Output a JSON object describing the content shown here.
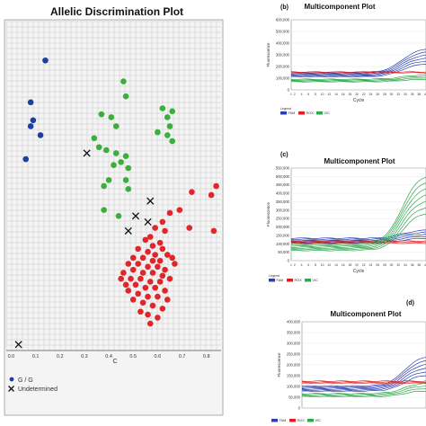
{
  "chart_data": [
    {
      "type": "scatter",
      "title": "Allelic Discrimination Plot",
      "xlabel": "C",
      "ylabel": "",
      "xlim": [
        -0.02,
        0.86
      ],
      "ylim": [
        -0.05,
        1.05
      ],
      "x_ticks": [
        "0.0",
        "0.1",
        "0.2",
        "0.3",
        "0.4",
        "0.5",
        "0.6",
        "0.7",
        "0.8"
      ],
      "grid": true,
      "legend": {
        "placement": "bottom-left",
        "entries": [
          "G / G",
          "Undetermined"
        ]
      },
      "series": [
        {
          "name": "G / G",
          "color": "#1f3fa0",
          "marker": "dot",
          "points": [
            [
              0.14,
              0.92
            ],
            [
              0.08,
              0.78
            ],
            [
              0.09,
              0.72
            ],
            [
              0.12,
              0.67
            ],
            [
              0.08,
              0.7
            ],
            [
              0.06,
              0.59
            ]
          ]
        },
        {
          "color": "#3cae3c",
          "marker": "dot",
          "points": [
            [
              0.46,
              0.85
            ],
            [
              0.47,
              0.8
            ],
            [
              0.41,
              0.73
            ],
            [
              0.43,
              0.7
            ],
            [
              0.37,
              0.74
            ],
            [
              0.34,
              0.66
            ],
            [
              0.36,
              0.63
            ],
            [
              0.39,
              0.62
            ],
            [
              0.43,
              0.61
            ],
            [
              0.47,
              0.6
            ],
            [
              0.45,
              0.58
            ],
            [
              0.48,
              0.56
            ],
            [
              0.42,
              0.57
            ],
            [
              0.4,
              0.52
            ],
            [
              0.47,
              0.52
            ],
            [
              0.48,
              0.49
            ],
            [
              0.38,
              0.5
            ],
            [
              0.62,
              0.76
            ],
            [
              0.64,
              0.73
            ],
            [
              0.66,
              0.75
            ],
            [
              0.65,
              0.7
            ],
            [
              0.64,
              0.67
            ],
            [
              0.6,
              0.68
            ],
            [
              0.66,
              0.65
            ],
            [
              0.38,
              0.42
            ],
            [
              0.44,
              0.4
            ]
          ]
        },
        {
          "color": "#e0262a",
          "marker": "dot",
          "points": [
            [
              0.84,
              0.5
            ],
            [
              0.82,
              0.47
            ],
            [
              0.74,
              0.48
            ],
            [
              0.69,
              0.42
            ],
            [
              0.65,
              0.41
            ],
            [
              0.83,
              0.35
            ],
            [
              0.73,
              0.36
            ],
            [
              0.62,
              0.38
            ],
            [
              0.59,
              0.36
            ],
            [
              0.63,
              0.35
            ],
            [
              0.57,
              0.33
            ],
            [
              0.61,
              0.31
            ],
            [
              0.55,
              0.32
            ],
            [
              0.58,
              0.3
            ],
            [
              0.62,
              0.29
            ],
            [
              0.52,
              0.29
            ],
            [
              0.56,
              0.28
            ],
            [
              0.59,
              0.27
            ],
            [
              0.64,
              0.27
            ],
            [
              0.5,
              0.26
            ],
            [
              0.54,
              0.26
            ],
            [
              0.58,
              0.25
            ],
            [
              0.61,
              0.25
            ],
            [
              0.66,
              0.26
            ],
            [
              0.48,
              0.24
            ],
            [
              0.52,
              0.24
            ],
            [
              0.56,
              0.23
            ],
            [
              0.6,
              0.23
            ],
            [
              0.63,
              0.22
            ],
            [
              0.67,
              0.24
            ],
            [
              0.5,
              0.22
            ],
            [
              0.54,
              0.21
            ],
            [
              0.58,
              0.21
            ],
            [
              0.62,
              0.2
            ],
            [
              0.46,
              0.21
            ],
            [
              0.49,
              0.19
            ],
            [
              0.53,
              0.19
            ],
            [
              0.57,
              0.18
            ],
            [
              0.61,
              0.18
            ],
            [
              0.65,
              0.19
            ],
            [
              0.51,
              0.17
            ],
            [
              0.55,
              0.16
            ],
            [
              0.59,
              0.16
            ],
            [
              0.63,
              0.15
            ],
            [
              0.48,
              0.15
            ],
            [
              0.52,
              0.14
            ],
            [
              0.56,
              0.13
            ],
            [
              0.6,
              0.13
            ],
            [
              0.54,
              0.11
            ],
            [
              0.58,
              0.1
            ],
            [
              0.62,
              0.09
            ],
            [
              0.56,
              0.07
            ],
            [
              0.6,
              0.06
            ],
            [
              0.57,
              0.04
            ],
            [
              0.53,
              0.08
            ],
            [
              0.5,
              0.12
            ],
            [
              0.47,
              0.17
            ],
            [
              0.45,
              0.19
            ],
            [
              0.64,
              0.12
            ]
          ]
        },
        {
          "name": "Undetermined",
          "color": "#111111",
          "marker": "x",
          "points": [
            [
              0.31,
              0.61
            ],
            [
              0.51,
              0.4
            ],
            [
              0.57,
              0.45
            ],
            [
              0.48,
              0.35
            ],
            [
              0.56,
              0.38
            ],
            [
              0.03,
              -0.03
            ]
          ]
        }
      ]
    },
    {
      "type": "line",
      "title": "Multicomponent Plot",
      "panel_label": "(b)",
      "xlabel": "Cycle",
      "ylabel": "Fluorescence",
      "y_ticks": [
        "0",
        "100,000",
        "200,000",
        "300,000",
        "400,000",
        "500,000",
        "600,000"
      ],
      "x_ticks": [
        "1",
        "2",
        "4",
        "6",
        "8",
        "10",
        "12",
        "14",
        "16",
        "18",
        "20",
        "22",
        "24",
        "26",
        "28",
        "30",
        "32",
        "34",
        "36",
        "38",
        "40"
      ],
      "legend": {
        "title": "Legend",
        "entries": [
          "FAM",
          "ROX",
          "VIC"
        ]
      },
      "series": [
        {
          "name": "FAM",
          "color": "#2b3fb0",
          "base": 130000,
          "end": 340000,
          "n": 6
        },
        {
          "name": "ROX",
          "color": "#e02020",
          "base": 150000,
          "end": 150000,
          "n": 2
        },
        {
          "name": "VIC",
          "color": "#2fa84f",
          "base": 80000,
          "end": 120000,
          "n": 4
        }
      ]
    },
    {
      "type": "line",
      "title": "Multicomponent Plot",
      "panel_label": "(c)",
      "xlabel": "Cycle",
      "ylabel": "Fluorescence",
      "y_ticks": [
        "0",
        "50,000",
        "100,000",
        "150,000",
        "200,000",
        "250,000",
        "300,000",
        "350,000",
        "400,000",
        "450,000",
        "500,000",
        "550,000"
      ],
      "x_ticks": [
        "1",
        "2",
        "4",
        "6",
        "8",
        "10",
        "12",
        "14",
        "16",
        "18",
        "20",
        "22",
        "24",
        "26",
        "28",
        "30",
        "32",
        "34",
        "36",
        "38",
        "40"
      ],
      "legend": {
        "title": "Legend",
        "entries": [
          "FAM",
          "ROX",
          "VIC"
        ]
      },
      "series": [
        {
          "name": "FAM",
          "color": "#2b3fb0",
          "base": 120000,
          "end": 170000,
          "n": 5
        },
        {
          "name": "ROX",
          "color": "#e02020",
          "base": 110000,
          "end": 110000,
          "n": 3
        },
        {
          "name": "VIC",
          "color": "#2fa84f",
          "base": 80000,
          "end": 500000,
          "n": 7
        }
      ]
    },
    {
      "type": "line",
      "title": "Multicomponent Plot",
      "panel_label": "(d)",
      "xlabel": "",
      "ylabel": "Fluorescence",
      "y_ticks": [
        "0",
        "50,000",
        "100,000",
        "150,000",
        "200,000",
        "250,000",
        "300,000",
        "350,000",
        "400,000"
      ],
      "x_ticks": [],
      "legend": {
        "title": "",
        "entries": [
          "FAM",
          "ROX",
          "VIC"
        ]
      },
      "series": [
        {
          "name": "FAM",
          "color": "#2b3fb0",
          "base": 90000,
          "end": 230000,
          "n": 6
        },
        {
          "name": "ROX",
          "color": "#e02020",
          "base": 120000,
          "end": 120000,
          "n": 3
        },
        {
          "name": "VIC",
          "color": "#2fa84f",
          "base": 60000,
          "end": 110000,
          "n": 4
        }
      ]
    }
  ]
}
